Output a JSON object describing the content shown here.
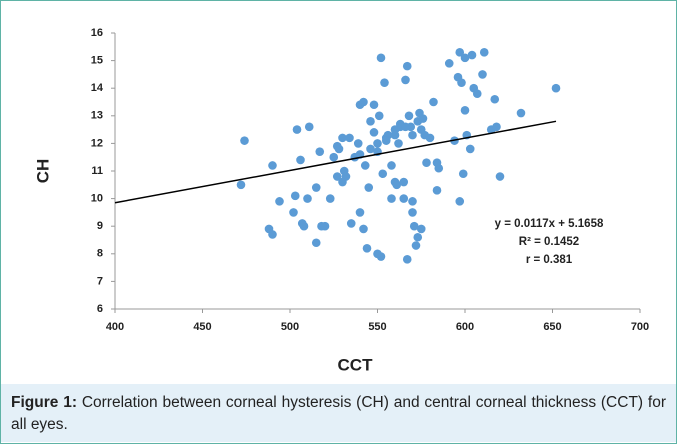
{
  "chart_data": {
    "type": "scatter",
    "xlabel": "CCT",
    "ylabel": "CH",
    "xlim": [
      400,
      700
    ],
    "xticks": [
      400,
      450,
      500,
      550,
      600,
      650,
      700
    ],
    "ylim": [
      6,
      16
    ],
    "yticks": [
      6,
      7,
      8,
      9,
      10,
      11,
      12,
      13,
      14,
      15,
      16
    ],
    "color": "#5b9bd5",
    "x": [
      472,
      474,
      490,
      494,
      488,
      490,
      503,
      502,
      507,
      508,
      510,
      504,
      511,
      506,
      517,
      515,
      515,
      520,
      518,
      523,
      525,
      527,
      528,
      530,
      531,
      532,
      530,
      535,
      534,
      537,
      539,
      540,
      540,
      542,
      540,
      542,
      544,
      545,
      546,
      546,
      548,
      548,
      550,
      550,
      551,
      552,
      550,
      553,
      552,
      554,
      555,
      556,
      558,
      558,
      560,
      560,
      561,
      562,
      563,
      563,
      565,
      565,
      566,
      567,
      567,
      568,
      569,
      570,
      570,
      571,
      572,
      573,
      575,
      574,
      573,
      575,
      576,
      577,
      578,
      580,
      582,
      584,
      585,
      584,
      591,
      594,
      596,
      597,
      597,
      598,
      600,
      599,
      600,
      601,
      603,
      605,
      604,
      607,
      610,
      611,
      615,
      617,
      618,
      620,
      632,
      652,
      566,
      560,
      555,
      543,
      527,
      570
    ],
    "y": [
      10.5,
      12.1,
      11.2,
      9.9,
      8.9,
      8.7,
      10.1,
      9.5,
      9.1,
      9.0,
      10.0,
      12.5,
      12.6,
      11.4,
      11.7,
      10.4,
      8.4,
      9.0,
      9.0,
      10.0,
      11.5,
      11.9,
      11.8,
      12.2,
      11.0,
      10.8,
      10.6,
      9.1,
      12.2,
      11.5,
      12.0,
      11.6,
      13.4,
      13.5,
      9.5,
      8.9,
      8.2,
      10.4,
      11.8,
      12.8,
      12.4,
      13.4,
      12.0,
      11.7,
      13.0,
      7.9,
      8.0,
      10.9,
      15.1,
      14.2,
      12.2,
      12.3,
      11.2,
      10.0,
      12.3,
      10.6,
      10.5,
      12.0,
      12.6,
      12.7,
      10.0,
      10.6,
      14.3,
      14.8,
      7.8,
      13.0,
      12.6,
      9.9,
      9.5,
      9.0,
      8.3,
      8.6,
      8.9,
      13.1,
      12.8,
      12.5,
      12.9,
      12.3,
      11.3,
      12.2,
      13.5,
      10.3,
      11.1,
      11.3,
      14.9,
      12.1,
      14.4,
      9.9,
      15.3,
      14.2,
      15.1,
      10.9,
      13.2,
      12.3,
      11.8,
      14.0,
      15.2,
      13.8,
      14.5,
      15.3,
      12.5,
      13.6,
      12.6,
      10.8,
      13.1,
      14.0,
      12.6,
      12.5,
      12.1,
      11.2,
      10.8,
      12.3
    ],
    "trendline": {
      "x": [
        400,
        652
      ],
      "y": [
        9.85,
        12.8
      ],
      "color": "#000000"
    },
    "annotations": [
      "y = 0.0117x + 5.1658",
      "R² = 0.1452",
      "r = 0.381"
    ]
  },
  "caption": {
    "label": "Figure 1:",
    "text": "Correlation between corneal hysteresis (CH) and central corneal thickness (CCT) for all eyes."
  }
}
